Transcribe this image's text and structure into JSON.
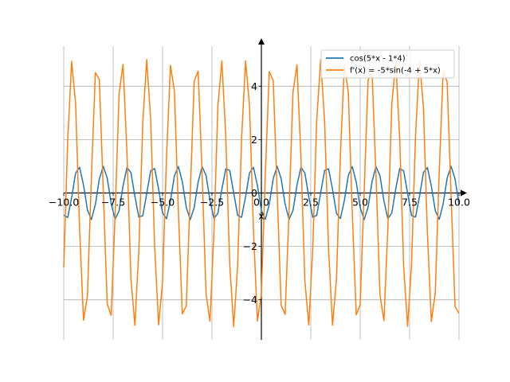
{
  "chart_data": {
    "type": "line",
    "xlabel": "x",
    "ylabel": "",
    "xlim": [
      -10.0,
      10.0
    ],
    "ylim": [
      -5.5,
      5.5
    ],
    "xticks": [
      -10.0,
      -7.5,
      -5.0,
      -2.5,
      0.0,
      2.5,
      5.0,
      7.5,
      10.0
    ],
    "xtick_labels": [
      "−10.0",
      "−7.5",
      "−5.0",
      "−2.5",
      "0.0",
      "2.5",
      "5.0",
      "7.5",
      "10.0"
    ],
    "yticks": [
      -4,
      -2,
      0,
      2,
      4
    ],
    "ytick_labels": [
      "−4",
      "−2",
      "0",
      "2",
      "4"
    ],
    "grid": true,
    "legend_position": "top-right",
    "series": [
      {
        "name": "cos(5*x - 1*4)",
        "color": "#1f77b4",
        "formula": "cos(5*x - 4)",
        "x_min": -10,
        "x_max": 10,
        "samples": 101
      },
      {
        "name": "f'(x) = -5*sin(-4 + 5*x)",
        "color": "#ff7f0e",
        "formula": "-5*sin(-4 + 5*x)",
        "x_min": -10,
        "x_max": 10,
        "samples": 101
      }
    ]
  }
}
